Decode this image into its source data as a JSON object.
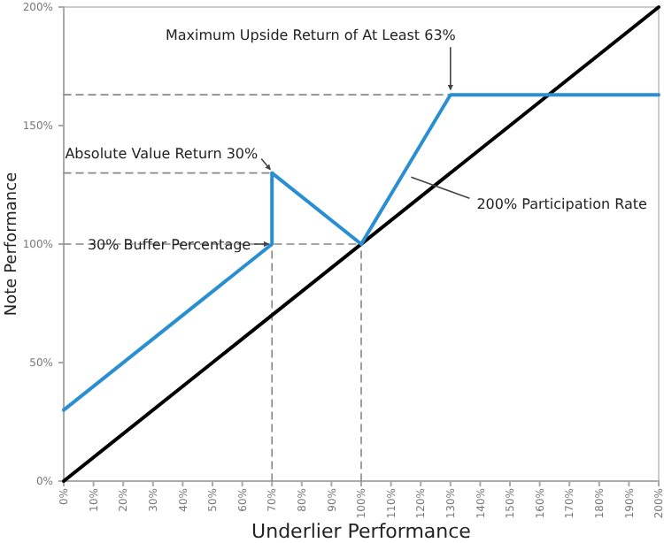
{
  "chart_data": {
    "type": "line",
    "xlabel": "Underlier Performance",
    "ylabel": "Note Performance",
    "xlim": [
      0,
      200
    ],
    "ylim": [
      0,
      200
    ],
    "xticks": [
      {
        "value": 0,
        "label": "0%"
      },
      {
        "value": 10,
        "label": "10%"
      },
      {
        "value": 20,
        "label": "20%"
      },
      {
        "value": 30,
        "label": "30%"
      },
      {
        "value": 40,
        "label": "40%"
      },
      {
        "value": 50,
        "label": "50%"
      },
      {
        "value": 60,
        "label": "60%"
      },
      {
        "value": 70,
        "label": "70%"
      },
      {
        "value": 80,
        "label": "80%"
      },
      {
        "value": 90,
        "label": "90%"
      },
      {
        "value": 100,
        "label": "100%"
      },
      {
        "value": 110,
        "label": "110%"
      },
      {
        "value": 120,
        "label": "120%"
      },
      {
        "value": 130,
        "label": "130%"
      },
      {
        "value": 140,
        "label": "140%"
      },
      {
        "value": 150,
        "label": "150%"
      },
      {
        "value": 160,
        "label": "160%"
      },
      {
        "value": 170,
        "label": "170%"
      },
      {
        "value": 180,
        "label": "180%"
      },
      {
        "value": 190,
        "label": "190%"
      },
      {
        "value": 200,
        "label": "200%"
      }
    ],
    "yticks": [
      {
        "value": 0,
        "label": "0%"
      },
      {
        "value": 50,
        "label": "50%"
      },
      {
        "value": 100,
        "label": "100%"
      },
      {
        "value": 150,
        "label": "150%"
      },
      {
        "value": 200,
        "label": "200%"
      }
    ],
    "grid": false,
    "marker": "none",
    "series": [
      {
        "color": "#888888",
        "line_style": "dashed",
        "x": [
          0,
          130
        ],
        "values": [
          163,
          163
        ]
      },
      {
        "color": "#888888",
        "line_style": "dashed",
        "x": [
          0,
          70
        ],
        "values": [
          130,
          130
        ]
      },
      {
        "color": "#888888",
        "line_style": "dashed",
        "x": [
          0,
          100
        ],
        "values": [
          100,
          100
        ]
      },
      {
        "color": "#888888",
        "line_style": "dashed",
        "x": [
          70,
          70
        ],
        "values": [
          0,
          130
        ]
      },
      {
        "color": "#888888",
        "line_style": "dashed",
        "x": [
          100,
          100
        ],
        "values": [
          0,
          100
        ]
      },
      {
        "color": "#000000",
        "line_style": "solid",
        "x": [
          0,
          200
        ],
        "values": [
          0,
          200
        ]
      },
      {
        "color": "#2a8fd2",
        "line_style": "solid",
        "x": [
          0,
          70,
          70,
          100,
          130,
          200
        ],
        "values": [
          30,
          100,
          130,
          100,
          163,
          163
        ]
      }
    ],
    "annotations": [
      {
        "text": "Maximum Upside Return of At Least 63%",
        "x": 130,
        "y": 163
      },
      {
        "text": "Absolute Value Return 30%",
        "x": 70,
        "y": 130
      },
      {
        "text": "30% Buffer Percentage",
        "x": 70,
        "y": 100
      },
      {
        "text": "200% Participation Rate",
        "x": 115,
        "y": 129
      }
    ]
  }
}
